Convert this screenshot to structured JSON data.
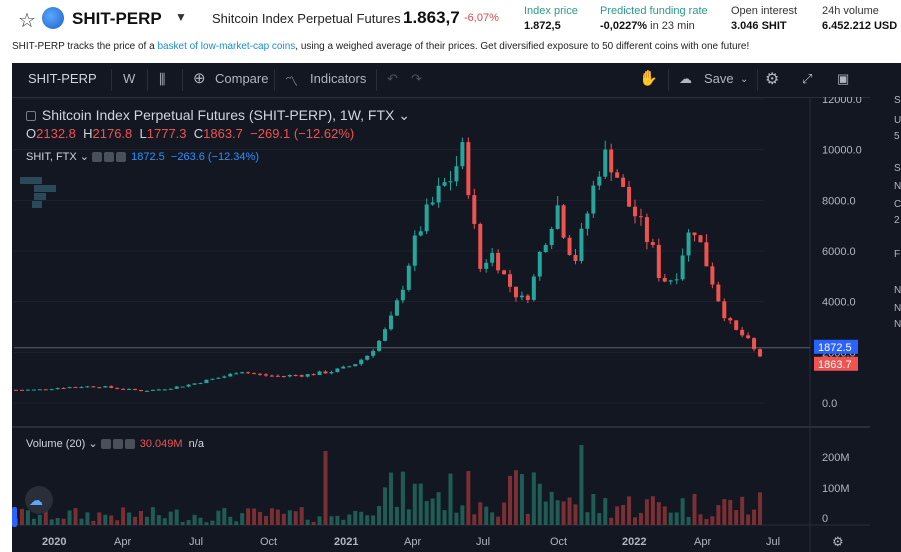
{
  "header": {
    "symbol": "SHIT-PERP",
    "full_name": "Shitcoin Index Perpetual Futures",
    "price": "1.863,7",
    "change": "-6,07%",
    "stats": [
      {
        "label": "Index price",
        "value": "1.872,5",
        "sub": ""
      },
      {
        "label": "Predicted funding rate",
        "value": "-0,0227%",
        "sub": "in 23 min"
      },
      {
        "label": "Open interest",
        "value": "3.046 SHIT",
        "sub": ""
      },
      {
        "label": "24h volume",
        "value": "6.452.212 USD",
        "sub": ""
      }
    ]
  },
  "description": {
    "before": "SHIT-PERP tracks the price of a ",
    "link": "basket of low-market-cap coins",
    "after": ", using a weighed average of their prices. Get diversified exposure to 50 different coins with one future!"
  },
  "toolbar": {
    "symbol": "SHIT-PERP",
    "interval": "W",
    "compare": "Compare",
    "indicators": "Indicators",
    "save": "Save"
  },
  "legend": {
    "title": "Shitcoin Index Perpetual Futures (SHIT-PERP), 1W, FTX",
    "o_label": "O",
    "o": "2132.8",
    "h_label": "H",
    "h": "2176.8",
    "l_label": "L",
    "l": "1777.3",
    "c_label": "C",
    "c": "1863.7",
    "chg": "−269.1 (−12.62%)",
    "index_series": "SHIT, FTX",
    "index_value": "1872.5",
    "index_change": "−263.6 (−12.34%)",
    "volume_label": "Volume (20)",
    "volume_value": "30.049M",
    "volume_na": "n/a"
  },
  "price_badges": {
    "index": "1872.5",
    "last": "1863.7"
  },
  "right_strip": [
    "S",
    "U",
    "5",
    "S",
    "N",
    "C",
    "2",
    "F",
    "N",
    "N",
    "N"
  ],
  "colors": {
    "bg": "#131722",
    "up": "#26a69a",
    "down": "#ef5350",
    "index_badge": "#2962ff",
    "last_badge": "#ef5350"
  },
  "chart_data": {
    "type": "candlestick",
    "interval": "1W",
    "y_ticks": [
      "12000.0",
      "10000.0",
      "8000.0",
      "6000.0",
      "4000.0",
      "2000.0",
      "0.0"
    ],
    "ylim": [
      0,
      12000
    ],
    "volume_ticks": [
      "200M",
      "100M",
      "0"
    ],
    "x_ticks": [
      "2020",
      "Apr",
      "Jul",
      "Oct",
      "2021",
      "Apr",
      "Jul",
      "Oct",
      "2022",
      "Apr",
      "Jul"
    ],
    "close_path": [
      [
        0,
        520
      ],
      [
        10,
        520
      ],
      [
        20,
        600
      ],
      [
        30,
        650
      ],
      [
        40,
        650
      ],
      [
        50,
        550
      ],
      [
        60,
        480
      ],
      [
        70,
        560
      ],
      [
        80,
        700
      ],
      [
        90,
        900
      ],
      [
        100,
        1100
      ],
      [
        105,
        1300
      ],
      [
        108,
        1200
      ],
      [
        115,
        1100
      ],
      [
        125,
        1050
      ],
      [
        130,
        1100
      ],
      [
        135,
        1100
      ],
      [
        140,
        1150
      ],
      [
        148,
        1250
      ],
      [
        155,
        1400
      ],
      [
        160,
        1600
      ],
      [
        165,
        1900
      ],
      [
        170,
        2400
      ],
      [
        175,
        3100
      ],
      [
        180,
        4200
      ],
      [
        185,
        5800
      ],
      [
        190,
        7000
      ],
      [
        195,
        7800
      ],
      [
        200,
        8500
      ],
      [
        205,
        9000
      ],
      [
        209,
        10000
      ],
      [
        212,
        8800
      ],
      [
        215,
        6800
      ],
      [
        218,
        5200
      ],
      [
        222,
        6000
      ],
      [
        226,
        5600
      ],
      [
        230,
        4800
      ],
      [
        234,
        4400
      ],
      [
        238,
        4000
      ],
      [
        242,
        4600
      ],
      [
        246,
        6000
      ],
      [
        250,
        7000
      ],
      [
        254,
        7800
      ],
      [
        258,
        6500
      ],
      [
        262,
        5600
      ],
      [
        266,
        6800
      ],
      [
        270,
        8200
      ],
      [
        274,
        9500
      ],
      [
        278,
        9800
      ],
      [
        282,
        9000
      ],
      [
        286,
        8000
      ],
      [
        290,
        7500
      ],
      [
        294,
        6800
      ],
      [
        298,
        6200
      ],
      [
        302,
        5000
      ],
      [
        306,
        4800
      ],
      [
        310,
        5200
      ],
      [
        314,
        6400
      ],
      [
        318,
        7000
      ],
      [
        322,
        6000
      ],
      [
        326,
        5000
      ],
      [
        330,
        4000
      ],
      [
        334,
        3200
      ],
      [
        338,
        2800
      ],
      [
        342,
        2600
      ],
      [
        346,
        2100
      ],
      [
        349,
        1864
      ]
    ]
  }
}
